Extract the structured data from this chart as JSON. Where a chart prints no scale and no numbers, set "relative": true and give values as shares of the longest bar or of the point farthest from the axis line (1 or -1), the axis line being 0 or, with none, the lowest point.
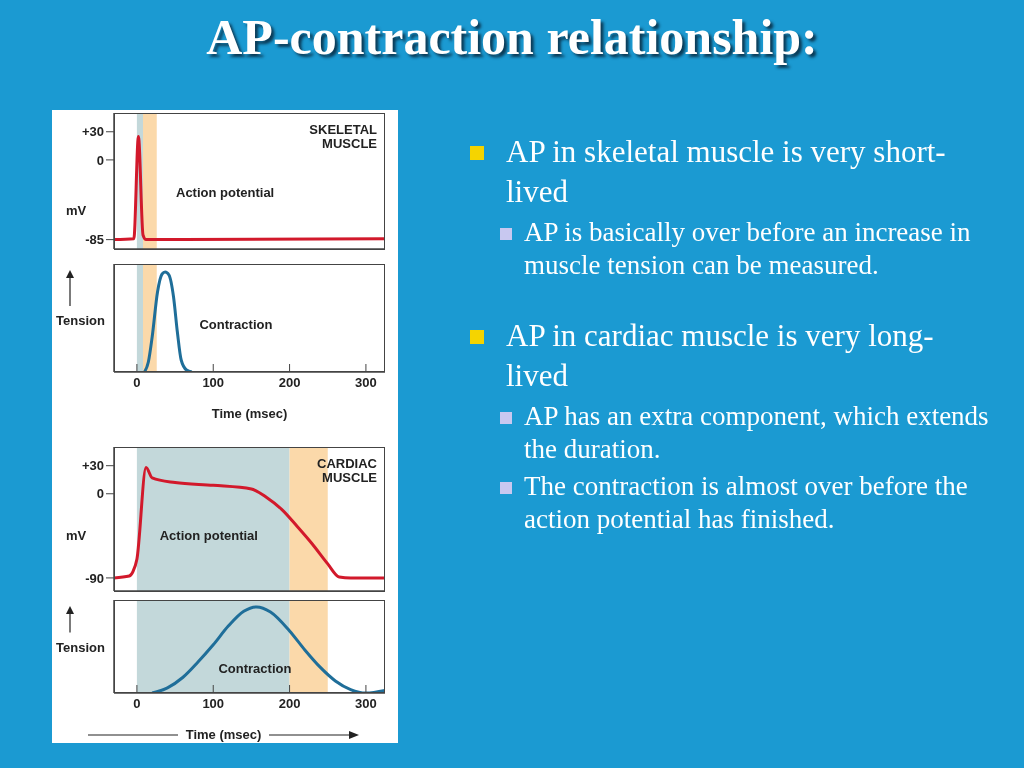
{
  "chart_data": [
    {
      "type": "other",
      "title": "AP-contraction relationship:"
    },
    {
      "type": "line",
      "title": "SKELETAL MUSCLE",
      "ylabel": "mV",
      "annotations": [
        "Action potential"
      ],
      "xlim": [
        -30,
        325
      ],
      "ylim": [
        -95,
        50
      ],
      "yticks": [
        {
          "value": 30,
          "label": "+30"
        },
        0,
        -85
      ],
      "tick_labels": "y",
      "grid": false,
      "legend": false,
      "bands": [
        {
          "axis": "x",
          "from": 0,
          "to": 8,
          "color": "#c3d8da"
        },
        {
          "axis": "x",
          "from": 8,
          "to": 26,
          "color": "#fbd9aa"
        }
      ],
      "series": [
        {
          "color": "#d2192b",
          "x": [
            -30,
            -4,
            2,
            8,
            12,
            60,
            325
          ],
          "values": [
            -85,
            -84,
            25,
            -80,
            -85,
            -85,
            -84
          ]
        }
      ]
    },
    {
      "type": "line",
      "ylabel": "Tension",
      "xlabel": "Time (msec)",
      "annotations": [
        "Contraction"
      ],
      "relative": true,
      "xlim": [
        -30,
        325
      ],
      "xticks": [
        0,
        100,
        200,
        300
      ],
      "tick_labels": "x",
      "grid": false,
      "legend": false,
      "bands": [
        {
          "axis": "x",
          "from": 0,
          "to": 8,
          "color": "#c3d8da"
        },
        {
          "axis": "x",
          "from": 8,
          "to": 26,
          "color": "#fbd9aa"
        }
      ],
      "series": [
        {
          "color": "#1f6e99",
          "x": [
            10,
            15,
            20,
            27,
            33,
            37,
            42,
            48,
            53,
            58,
            65,
            72
          ],
          "values": [
            0,
            0.1,
            0.35,
            0.8,
            0.98,
            1,
            0.97,
            0.75,
            0.4,
            0.12,
            0.02,
            0
          ]
        }
      ]
    },
    {
      "type": "line",
      "title": "CARDIAC MUSCLE",
      "ylabel": "mV",
      "annotations": [
        "Action potential"
      ],
      "xlim": [
        -30,
        325
      ],
      "ylim": [
        -104,
        50
      ],
      "yticks": [
        {
          "value": 30,
          "label": "+30"
        },
        0,
        -90
      ],
      "tick_labels": "y",
      "grid": false,
      "legend": false,
      "bands": [
        {
          "axis": "x",
          "from": 0,
          "to": 200,
          "color": "#c3d8da"
        },
        {
          "axis": "x",
          "from": 200,
          "to": 250,
          "color": "#fbd9aa"
        }
      ],
      "series": [
        {
          "color": "#d2192b",
          "x": [
            -30,
            -10,
            -5,
            0,
            12,
            20,
            50,
            100,
            150,
            170,
            190,
            210,
            230,
            250,
            265,
            280,
            325
          ],
          "values": [
            -90,
            -88,
            -83,
            -70,
            28,
            17,
            12,
            9,
            5,
            -4,
            -17,
            -35,
            -54,
            -75,
            -89,
            -90,
            -90
          ]
        }
      ]
    },
    {
      "type": "line",
      "ylabel": "Tension",
      "xlabel": "Time (msec)",
      "annotations": [
        "Contraction"
      ],
      "relative": true,
      "xlim": [
        -30,
        325
      ],
      "xticks": [
        0,
        100,
        200,
        300
      ],
      "tick_labels": "x",
      "grid": false,
      "legend": false,
      "bands": [
        {
          "axis": "x",
          "from": 0,
          "to": 200,
          "color": "#c3d8da"
        },
        {
          "axis": "x",
          "from": 200,
          "to": 250,
          "color": "#fbd9aa"
        }
      ],
      "series": [
        {
          "color": "#1f6e99",
          "x": [
            20,
            40,
            60,
            80,
            100,
            120,
            140,
            157,
            175,
            200,
            220,
            240,
            260,
            280,
            300,
            325
          ],
          "values": [
            0,
            0.06,
            0.18,
            0.36,
            0.56,
            0.78,
            0.95,
            1,
            0.94,
            0.72,
            0.5,
            0.3,
            0.14,
            0.04,
            0,
            0.03
          ]
        }
      ]
    },
    {
      "type": "other",
      "annotations": [
        "AP in skeletal muscle is very short-lived",
        "AP is basically over before an increase in muscle tension can be measured.",
        "AP in cardiac muscle is very long-lived",
        "AP has an extra component, which extends the duration.",
        "The contraction is almost over before the action potential has finished."
      ]
    }
  ]
}
